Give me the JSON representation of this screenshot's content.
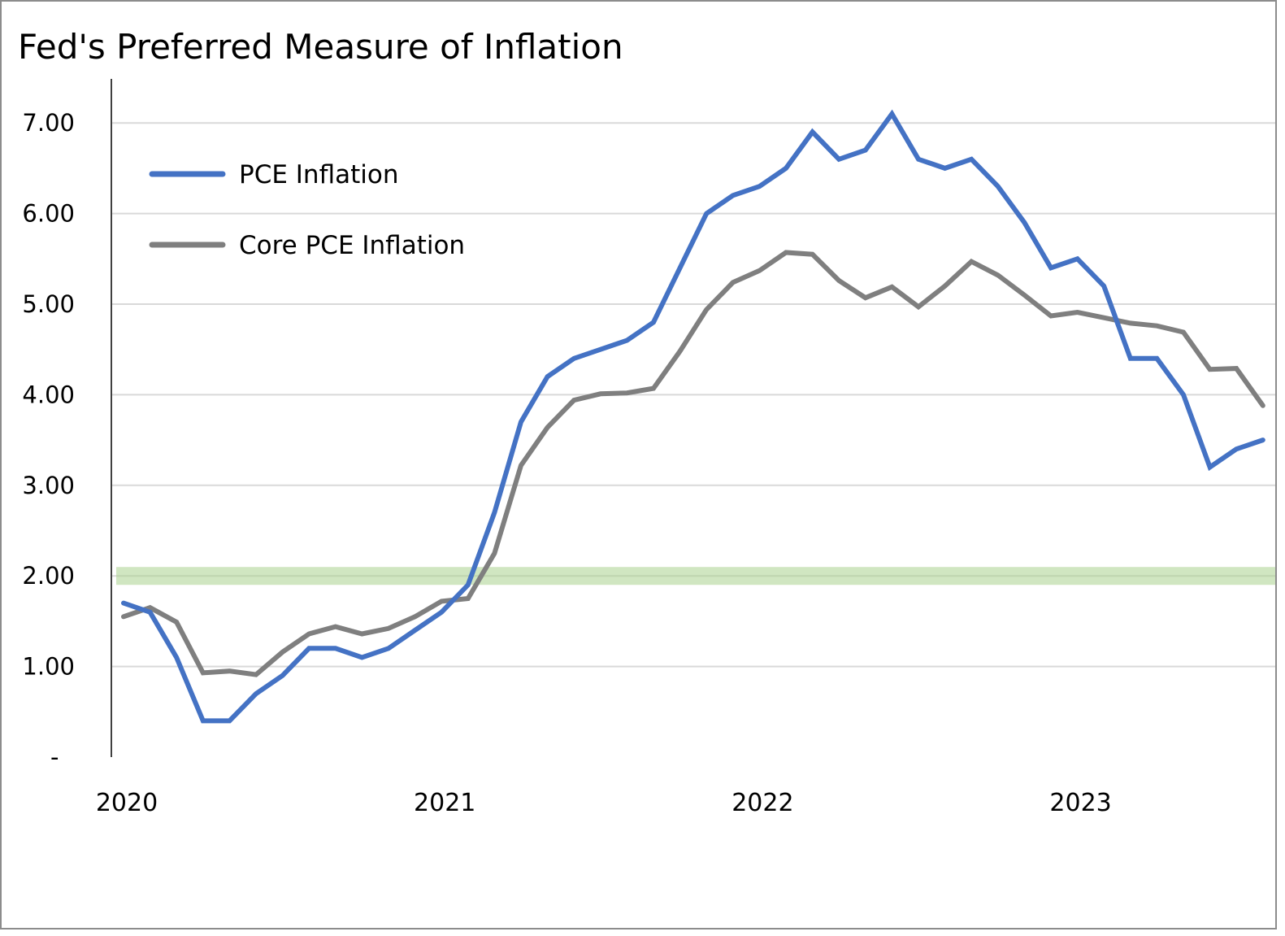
{
  "chart_data": {
    "type": "line",
    "title": "Fed's Preferred Measure of Inflation",
    "xlabel": "",
    "ylabel": "",
    "ylim": [
      0,
      7
    ],
    "yticks": [
      0,
      1,
      2,
      3,
      4,
      5,
      6,
      7
    ],
    "ytick_labels": [
      "-",
      "1.00",
      "2.00",
      "3.00",
      "4.00",
      "5.00",
      "6.00",
      "7.00"
    ],
    "xtick_labels": [
      "2020",
      "2021",
      "2022",
      "2023"
    ],
    "x": [
      "2020-01",
      "2020-02",
      "2020-03",
      "2020-04",
      "2020-05",
      "2020-06",
      "2020-07",
      "2020-08",
      "2020-09",
      "2020-10",
      "2020-11",
      "2020-12",
      "2021-01",
      "2021-02",
      "2021-03",
      "2021-04",
      "2021-05",
      "2021-06",
      "2021-07",
      "2021-08",
      "2021-09",
      "2021-10",
      "2021-11",
      "2021-12",
      "2022-01",
      "2022-02",
      "2022-03",
      "2022-04",
      "2022-05",
      "2022-06",
      "2022-07",
      "2022-08",
      "2022-09",
      "2022-10",
      "2022-11",
      "2022-12",
      "2023-01",
      "2023-02",
      "2023-03",
      "2023-04",
      "2023-05",
      "2023-06",
      "2023-07",
      "2023-08"
    ],
    "grid": true,
    "legend_position": "top-left",
    "target_band": {
      "value": 2.0,
      "color": "#a9d18e"
    },
    "series": [
      {
        "name": "PCE Inflation",
        "color": "#4472c4",
        "values": [
          1.7,
          1.6,
          1.1,
          0.4,
          0.4,
          0.7,
          0.9,
          1.2,
          1.2,
          1.1,
          1.2,
          1.4,
          1.6,
          1.9,
          2.7,
          3.7,
          4.2,
          4.4,
          4.5,
          4.6,
          4.8,
          5.4,
          6.0,
          6.2,
          6.3,
          6.5,
          6.9,
          6.6,
          6.7,
          7.1,
          6.6,
          6.5,
          6.6,
          6.3,
          5.9,
          5.4,
          5.5,
          5.2,
          4.4,
          4.4,
          4.0,
          3.2,
          3.4,
          3.5
        ]
      },
      {
        "name": "Core PCE Inflation",
        "color": "#7f7f7f",
        "values": [
          1.55,
          1.65,
          1.49,
          0.93,
          0.95,
          0.91,
          1.16,
          1.36,
          1.44,
          1.36,
          1.42,
          1.55,
          1.72,
          1.75,
          2.25,
          3.22,
          3.64,
          3.94,
          4.01,
          4.02,
          4.07,
          4.48,
          4.94,
          5.24,
          5.37,
          5.57,
          5.55,
          5.26,
          5.07,
          5.19,
          4.97,
          5.2,
          5.47,
          5.32,
          5.1,
          4.87,
          4.91,
          4.85,
          4.79,
          4.76,
          4.69,
          4.28,
          4.29,
          3.88
        ]
      }
    ]
  }
}
